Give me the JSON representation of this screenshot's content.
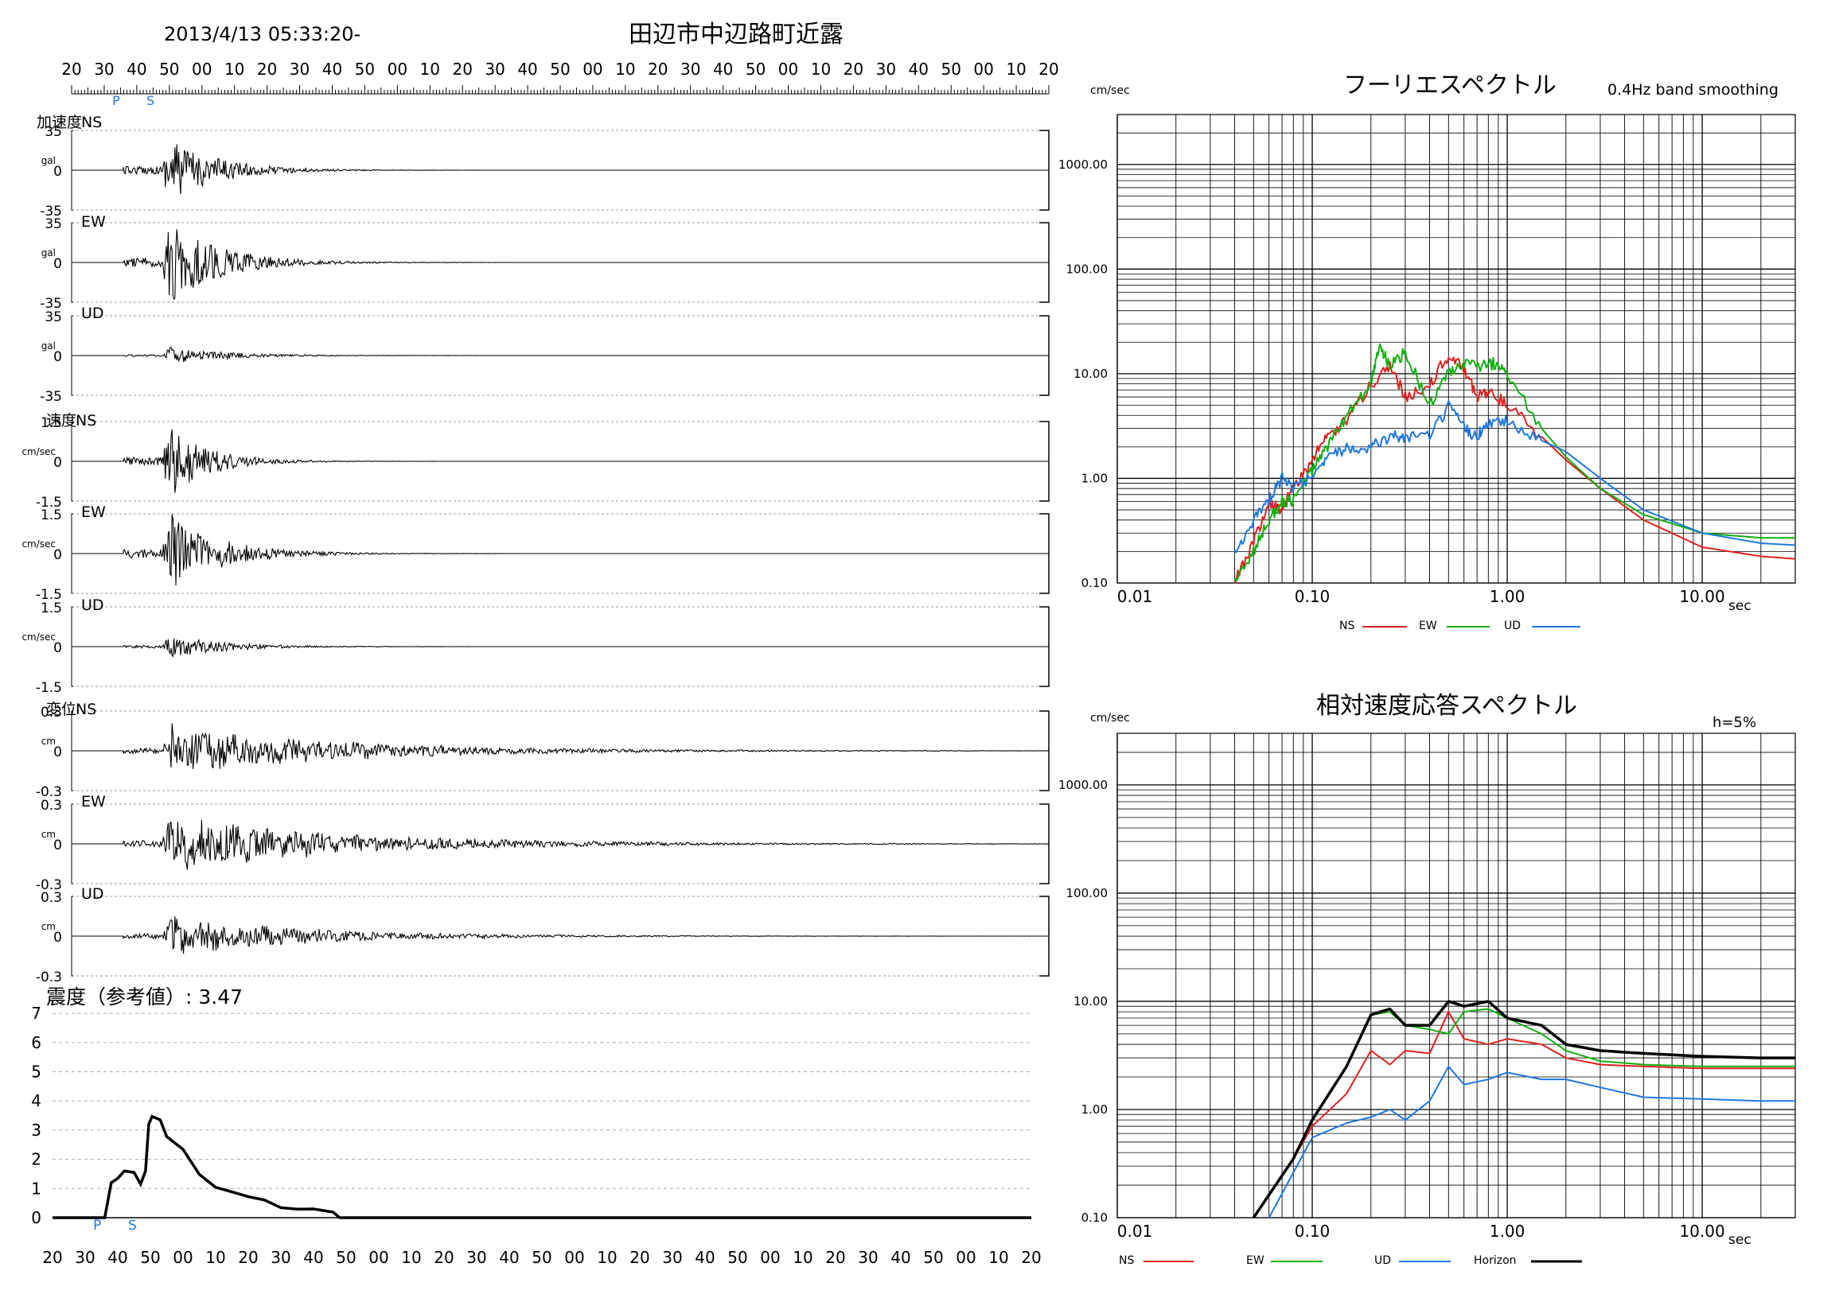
{
  "header": {
    "datetime": "2013/4/13 05:33:20-",
    "station": "田辺市中辺路町近露"
  },
  "waveforms": {
    "time_ticks": [
      "20",
      "30",
      "40",
      "50",
      "00",
      "10",
      "20",
      "30",
      "40",
      "50",
      "00",
      "10",
      "20",
      "30",
      "40",
      "50",
      "00",
      "10",
      "20",
      "30",
      "40",
      "50",
      "00",
      "10",
      "20",
      "30",
      "40",
      "50",
      "00",
      "10",
      "20"
    ],
    "phase_marks": [
      "P",
      "S"
    ],
    "accel_group_label": "加速度",
    "velocity_group_label": "速度",
    "disp_group_label": "変位",
    "units": {
      "accel": "gal",
      "velocity": "cm/sec",
      "disp": "cm"
    },
    "panels": [
      {
        "component": "NS",
        "limits": [
          "35",
          "0",
          "-35"
        ]
      },
      {
        "component": "EW",
        "limits": [
          "35",
          "0",
          "-35"
        ]
      },
      {
        "component": "UD",
        "limits": [
          "35",
          "0",
          "-35"
        ]
      },
      {
        "component": "NS",
        "limits": [
          "1.5",
          "0",
          "-1.5"
        ]
      },
      {
        "component": "EW",
        "limits": [
          "1.5",
          "0",
          "-1.5"
        ]
      },
      {
        "component": "UD",
        "limits": [
          "1.5",
          "0",
          "-1.5"
        ]
      },
      {
        "component": "NS",
        "limits": [
          "0.3",
          "0",
          "-0.3"
        ]
      },
      {
        "component": "EW",
        "limits": [
          "0.3",
          "0",
          "-0.3"
        ]
      },
      {
        "component": "UD",
        "limits": [
          "0.3",
          "0",
          "-0.3"
        ]
      }
    ]
  },
  "intensity": {
    "label": "震度（参考値）: 3.47",
    "y_ticks": [
      "7",
      "6",
      "5",
      "4",
      "3",
      "2",
      "1",
      "0"
    ]
  },
  "fourier": {
    "title": "フーリエスペクトル",
    "note": "0.4Hz band smoothing",
    "y_unit": "cm/sec",
    "x_unit": "sec",
    "y_tick_labels": [
      "1000.00",
      "100.00",
      "10.00",
      "1.00",
      "0.10"
    ],
    "x_tick_labels": [
      "0.01",
      "0.10",
      "1.00",
      "10.00"
    ],
    "legend": [
      "NS",
      "EW",
      "UD"
    ]
  },
  "response": {
    "title": "相対速度応答スペクトル",
    "note": "h=5%",
    "y_unit": "cm/sec",
    "x_unit": "sec",
    "y_tick_labels": [
      "1000.00",
      "100.00",
      "10.00",
      "1.00",
      "0.10"
    ],
    "x_tick_labels": [
      "0.01",
      "0.10",
      "1.00",
      "10.00"
    ],
    "legend": [
      "NS",
      "EW",
      "UD",
      "Horizon"
    ]
  },
  "colors": {
    "NS": "#e02020",
    "EW": "#10b010",
    "UD": "#1e78e0",
    "Horizon": "#000000",
    "trace": "#000000",
    "phase": "#1e78e0"
  },
  "chart_data": [
    {
      "type": "line",
      "title": "フーリエスペクトル",
      "xlabel": "sec",
      "ylabel": "cm/sec",
      "x_scale": "log",
      "y_scale": "log",
      "xlim": [
        0.01,
        30
      ],
      "ylim": [
        0.1,
        3000
      ],
      "grid": true,
      "legend": "bottom",
      "series": [
        {
          "name": "NS",
          "x": [
            0.04,
            0.05,
            0.06,
            0.07,
            0.08,
            0.1,
            0.12,
            0.15,
            0.2,
            0.25,
            0.3,
            0.4,
            0.5,
            0.6,
            0.7,
            0.8,
            1.0,
            1.5,
            2.0,
            3.0,
            5.0,
            10.0,
            20.0,
            30.0
          ],
          "y": [
            0.1,
            0.25,
            0.6,
            0.5,
            0.8,
            1.5,
            2.5,
            3.5,
            8.0,
            12.0,
            6.0,
            8.0,
            15.0,
            11.0,
            6.0,
            7.0,
            5.0,
            2.5,
            1.5,
            0.8,
            0.4,
            0.22,
            0.18,
            0.17
          ]
        },
        {
          "name": "EW",
          "x": [
            0.04,
            0.05,
            0.06,
            0.07,
            0.08,
            0.1,
            0.12,
            0.15,
            0.2,
            0.22,
            0.25,
            0.3,
            0.4,
            0.5,
            0.6,
            0.8,
            0.9,
            1.0,
            1.5,
            2.0,
            3.0,
            5.0,
            10.0,
            20.0,
            30.0
          ],
          "y": [
            0.1,
            0.2,
            0.4,
            0.6,
            0.6,
            1.2,
            2.0,
            4.0,
            8.0,
            18.0,
            12.0,
            16.0,
            5.0,
            10.0,
            12.0,
            12.0,
            13.0,
            10.0,
            3.0,
            1.6,
            0.8,
            0.45,
            0.3,
            0.27,
            0.27
          ]
        },
        {
          "name": "UD",
          "x": [
            0.04,
            0.05,
            0.06,
            0.07,
            0.08,
            0.1,
            0.12,
            0.15,
            0.2,
            0.25,
            0.3,
            0.4,
            0.5,
            0.6,
            0.7,
            0.8,
            1.0,
            1.5,
            2.0,
            3.0,
            5.0,
            10.0,
            20.0,
            30.0
          ],
          "y": [
            0.2,
            0.4,
            0.6,
            1.0,
            0.8,
            1.0,
            1.5,
            2.0,
            2.0,
            2.5,
            2.5,
            2.5,
            4.8,
            3.0,
            2.5,
            3.5,
            3.5,
            2.3,
            1.8,
            1.0,
            0.5,
            0.3,
            0.24,
            0.23
          ]
        }
      ]
    },
    {
      "type": "line",
      "title": "相対速度応答スペクトル",
      "xlabel": "sec",
      "ylabel": "cm/sec",
      "x_scale": "log",
      "y_scale": "log",
      "xlim": [
        0.01,
        30
      ],
      "ylim": [
        0.1,
        3000
      ],
      "grid": true,
      "legend": "bottom",
      "series": [
        {
          "name": "NS",
          "x": [
            0.05,
            0.08,
            0.1,
            0.15,
            0.2,
            0.25,
            0.3,
            0.4,
            0.5,
            0.6,
            0.8,
            1.0,
            1.5,
            2.0,
            3.0,
            5.0,
            10.0,
            20.0,
            30.0
          ],
          "y": [
            0.1,
            0.35,
            0.7,
            1.4,
            3.5,
            2.6,
            3.5,
            3.3,
            8.0,
            4.5,
            4.0,
            4.5,
            4.0,
            3.0,
            2.6,
            2.5,
            2.4,
            2.4,
            2.4
          ]
        },
        {
          "name": "EW",
          "x": [
            0.05,
            0.08,
            0.1,
            0.15,
            0.2,
            0.25,
            0.3,
            0.4,
            0.5,
            0.6,
            0.8,
            1.0,
            1.5,
            2.0,
            3.0,
            5.0,
            10.0,
            20.0,
            30.0
          ],
          "y": [
            0.1,
            0.35,
            0.8,
            2.5,
            7.5,
            8.0,
            6.0,
            5.5,
            5.0,
            8.0,
            8.5,
            7.0,
            5.0,
            3.5,
            2.8,
            2.6,
            2.5,
            2.5,
            2.5
          ]
        },
        {
          "name": "UD",
          "x": [
            0.06,
            0.1,
            0.15,
            0.2,
            0.25,
            0.3,
            0.4,
            0.5,
            0.6,
            0.8,
            1.0,
            1.5,
            2.0,
            3.0,
            5.0,
            10.0,
            20.0,
            30.0
          ],
          "y": [
            0.1,
            0.55,
            0.75,
            0.85,
            1.0,
            0.8,
            1.2,
            2.5,
            1.7,
            1.9,
            2.2,
            1.9,
            1.9,
            1.6,
            1.3,
            1.25,
            1.2,
            1.2
          ]
        },
        {
          "name": "Horizon",
          "x": [
            0.05,
            0.08,
            0.1,
            0.15,
            0.2,
            0.25,
            0.3,
            0.4,
            0.5,
            0.6,
            0.8,
            1.0,
            1.5,
            2.0,
            3.0,
            5.0,
            10.0,
            20.0,
            30.0
          ],
          "y": [
            0.1,
            0.35,
            0.8,
            2.5,
            7.5,
            8.5,
            6.0,
            6.0,
            10.0,
            9.0,
            10.0,
            7.0,
            6.0,
            4.0,
            3.5,
            3.3,
            3.1,
            3.0,
            3.0
          ]
        }
      ]
    }
  ]
}
